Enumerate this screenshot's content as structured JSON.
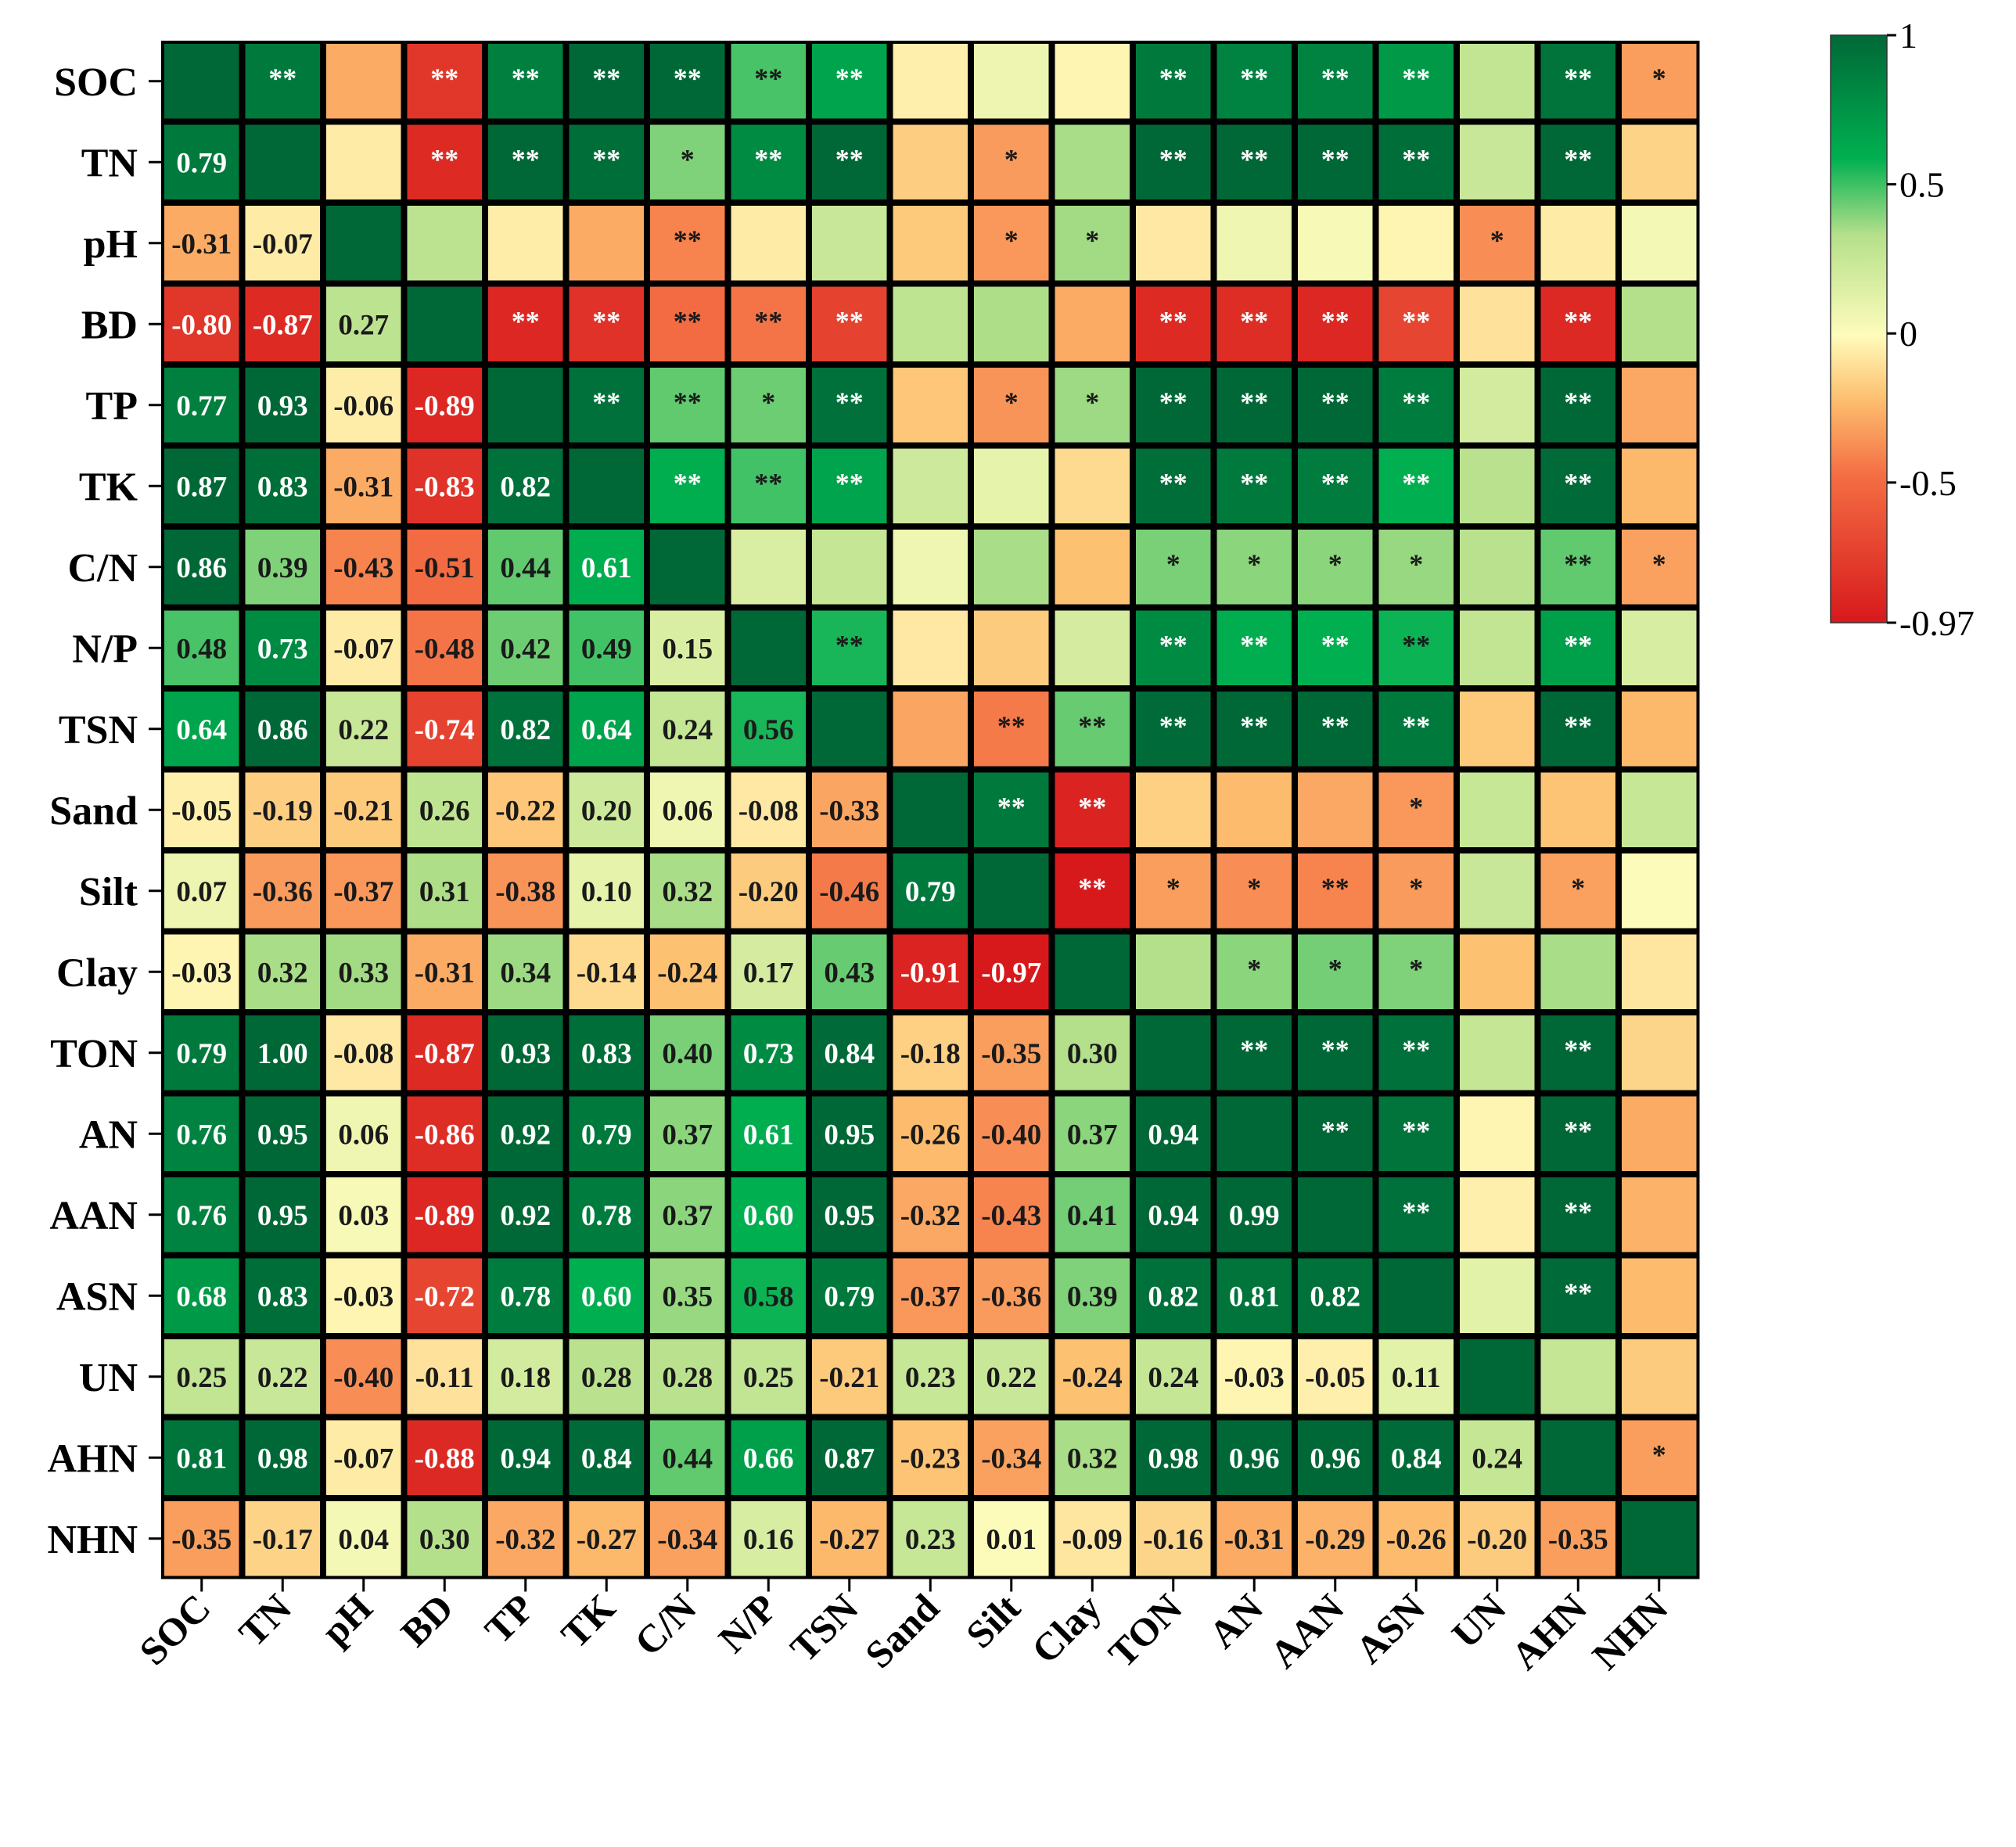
{
  "chart_data": {
    "type": "heatmap",
    "title": "",
    "variables": [
      "SOC",
      "TN",
      "pH",
      "BD",
      "TP",
      "TK",
      "C/N",
      "N/P",
      "TSN",
      "Sand",
      "Silt",
      "Clay",
      "TON",
      "AN",
      "AAN",
      "ASN",
      "UN",
      "AHN",
      "NHN"
    ],
    "lower_triangle_rows": [
      [],
      [
        "0.79"
      ],
      [
        "-0.31",
        "-0.07"
      ],
      [
        "-0.80",
        "-0.87",
        "0.27"
      ],
      [
        "0.77",
        "0.93",
        "-0.06",
        "-0.89"
      ],
      [
        "0.87",
        "0.83",
        "-0.31",
        "-0.83",
        "0.82"
      ],
      [
        "0.86",
        "0.39",
        "-0.43",
        "-0.51",
        "0.44",
        "0.61"
      ],
      [
        "0.48",
        "0.73",
        "-0.07",
        "-0.48",
        "0.42",
        "0.49",
        "0.15"
      ],
      [
        "0.64",
        "0.86",
        "0.22",
        "-0.74",
        "0.82",
        "0.64",
        "0.24",
        "0.56"
      ],
      [
        "-0.05",
        "-0.19",
        "-0.21",
        "0.26",
        "-0.22",
        "0.20",
        "0.06",
        "-0.08",
        "-0.33"
      ],
      [
        "0.07",
        "-0.36",
        "-0.37",
        "0.31",
        "-0.38",
        "0.10",
        "0.32",
        "-0.20",
        "-0.46",
        "0.79"
      ],
      [
        "-0.03",
        "0.32",
        "0.33",
        "-0.31",
        "0.34",
        "-0.14",
        "-0.24",
        "0.17",
        "0.43",
        "-0.91",
        "-0.97"
      ],
      [
        "0.79",
        "1.00",
        "-0.08",
        "-0.87",
        "0.93",
        "0.83",
        "0.40",
        "0.73",
        "0.84",
        "-0.18",
        "-0.35",
        "0.30"
      ],
      [
        "0.76",
        "0.95",
        "0.06",
        "-0.86",
        "0.92",
        "0.79",
        "0.37",
        "0.61",
        "0.95",
        "-0.26",
        "-0.40",
        "0.37",
        "0.94"
      ],
      [
        "0.76",
        "0.95",
        "0.03",
        "-0.89",
        "0.92",
        "0.78",
        "0.37",
        "0.60",
        "0.95",
        "-0.32",
        "-0.43",
        "0.41",
        "0.94",
        "0.99"
      ],
      [
        "0.68",
        "0.83",
        "-0.03",
        "-0.72",
        "0.78",
        "0.60",
        "0.35",
        "0.58",
        "0.79",
        "-0.37",
        "-0.36",
        "0.39",
        "0.82",
        "0.81",
        "0.82"
      ],
      [
        "0.25",
        "0.22",
        "-0.40",
        "-0.11",
        "0.18",
        "0.28",
        "0.28",
        "0.25",
        "-0.21",
        "0.23",
        "0.22",
        "-0.24",
        "0.24",
        "-0.03",
        "-0.05",
        "0.11"
      ],
      [
        "0.81",
        "0.98",
        "-0.07",
        "-0.88",
        "0.94",
        "0.84",
        "0.44",
        "0.66",
        "0.87",
        "-0.23",
        "-0.34",
        "0.32",
        "0.98",
        "0.96",
        "0.96",
        "0.84",
        "0.24"
      ],
      [
        "-0.35",
        "-0.17",
        "0.04",
        "0.30",
        "-0.32",
        "-0.27",
        "-0.34",
        "0.16",
        "-0.27",
        "0.23",
        "0.01",
        "-0.09",
        "-0.16",
        "-0.31",
        "-0.29",
        "-0.26",
        "-0.20",
        "-0.35"
      ]
    ],
    "significance_upper": {
      "0-1": "**",
      "0-3": "**",
      "0-4": "**",
      "0-5": "**",
      "0-6": "**",
      "0-7": "**",
      "0-8": "**",
      "0-12": "**",
      "0-13": "**",
      "0-14": "**",
      "0-15": "**",
      "0-17": "**",
      "0-18": "*",
      "1-3": "**",
      "1-4": "**",
      "1-5": "**",
      "1-6": "*",
      "1-7": "**",
      "1-8": "**",
      "1-10": "*",
      "1-12": "**",
      "1-13": "**",
      "1-14": "**",
      "1-15": "**",
      "1-17": "**",
      "2-6": "**",
      "2-10": "*",
      "2-11": "*",
      "2-16": "*",
      "3-4": "**",
      "3-5": "**",
      "3-6": "**",
      "3-7": "**",
      "3-8": "**",
      "3-12": "**",
      "3-13": "**",
      "3-14": "**",
      "3-15": "**",
      "3-17": "**",
      "4-5": "**",
      "4-6": "**",
      "4-7": "*",
      "4-8": "**",
      "4-10": "*",
      "4-11": "*",
      "4-12": "**",
      "4-13": "**",
      "4-14": "**",
      "4-15": "**",
      "4-17": "**",
      "5-6": "**",
      "5-7": "**",
      "5-8": "**",
      "5-12": "**",
      "5-13": "**",
      "5-14": "**",
      "5-15": "**",
      "5-17": "**",
      "6-12": "*",
      "6-13": "*",
      "6-14": "*",
      "6-15": "*",
      "6-17": "**",
      "6-18": "*",
      "7-8": "**",
      "7-12": "**",
      "7-13": "**",
      "7-14": "**",
      "7-15": "**",
      "7-17": "**",
      "8-10": "**",
      "8-11": "**",
      "8-12": "**",
      "8-13": "**",
      "8-14": "**",
      "8-15": "**",
      "8-17": "**",
      "9-10": "**",
      "9-11": "**",
      "9-15": "*",
      "10-11": "**",
      "10-12": "*",
      "10-13": "*",
      "10-14": "**",
      "10-15": "*",
      "10-17": "*",
      "11-13": "*",
      "11-14": "*",
      "11-15": "*",
      "12-13": "**",
      "12-14": "**",
      "12-15": "**",
      "12-17": "**",
      "13-14": "**",
      "13-15": "**",
      "13-17": "**",
      "14-15": "**",
      "14-17": "**",
      "15-17": "**",
      "17-18": "*"
    },
    "colorbar": {
      "min": -0.97,
      "max": 1,
      "ticks": [
        "1",
        "0.5",
        "0",
        "-0.5",
        "-0.97"
      ]
    },
    "colors": {
      "strong_negative": "#d7191c",
      "neutral": "#fefcbb",
      "strong_positive": "#006837"
    }
  }
}
